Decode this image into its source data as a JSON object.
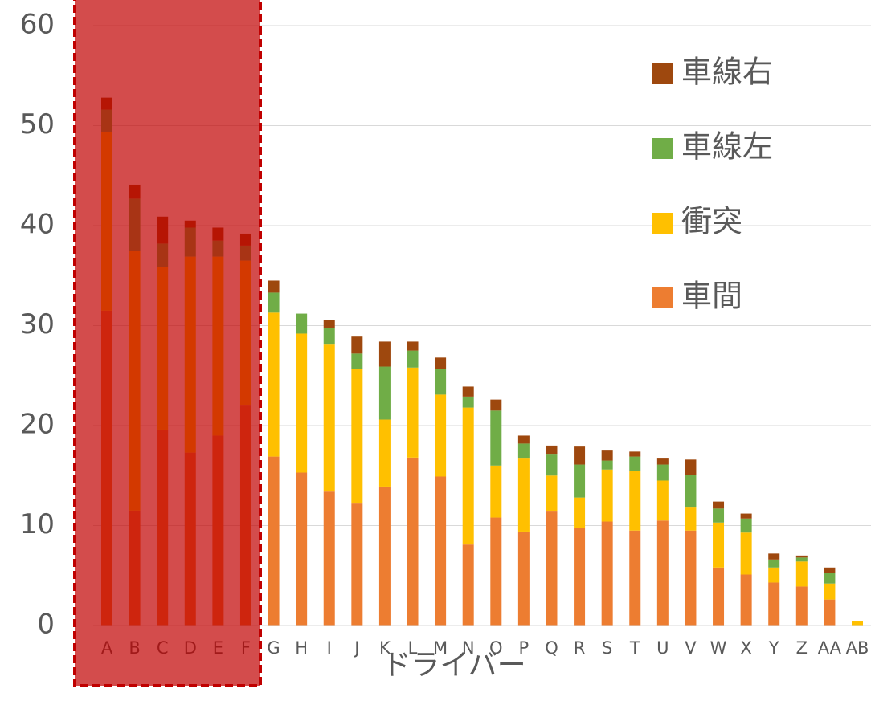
{
  "chart_data": {
    "type": "stacked_bar",
    "x_label": "ドライバー",
    "categories": [
      "A",
      "B",
      "C",
      "D",
      "E",
      "F",
      "G",
      "H",
      "I",
      "J",
      "K",
      "L",
      "M",
      "N",
      "O",
      "P",
      "Q",
      "R",
      "S",
      "T",
      "U",
      "V",
      "W",
      "X",
      "Y",
      "Z",
      "AA",
      "AB"
    ],
    "series": [
      {
        "name": "車間",
        "color": "#ed7d31",
        "values": [
          31.5,
          11.5,
          19.6,
          17.3,
          19.0,
          22.0,
          16.9,
          15.3,
          13.4,
          12.2,
          13.9,
          16.8,
          14.9,
          8.1,
          10.8,
          9.4,
          11.4,
          9.8,
          10.4,
          9.5,
          10.5,
          9.5,
          5.8,
          5.1,
          4.3,
          3.9,
          2.6,
          0
        ]
      },
      {
        "name": "衝突",
        "color": "#ffc000",
        "values": [
          17.9,
          26.0,
          16.3,
          19.6,
          17.9,
          14.5,
          14.4,
          13.9,
          14.7,
          13.5,
          6.7,
          9.0,
          8.2,
          13.7,
          5.2,
          7.3,
          3.6,
          3.0,
          5.2,
          6.0,
          4.0,
          2.3,
          4.5,
          4.2,
          1.5,
          2.5,
          1.6,
          0.4
        ]
      },
      {
        "name": "車線左",
        "color": "#70ad47",
        "values": [
          2.2,
          5.2,
          2.3,
          2.9,
          1.6,
          1.5,
          2.0,
          2.0,
          1.7,
          1.5,
          5.3,
          1.7,
          2.6,
          1.1,
          5.5,
          1.5,
          2.1,
          3.3,
          0.9,
          1.4,
          1.6,
          3.3,
          1.4,
          1.4,
          0.8,
          0.4,
          1.1,
          0
        ]
      },
      {
        "name": "車線右",
        "color": "#9e480e",
        "values": [
          1.2,
          1.4,
          2.7,
          0.7,
          1.3,
          1.2,
          1.2,
          0,
          0.8,
          1.7,
          2.5,
          0.9,
          1.1,
          1.0,
          1.1,
          0.8,
          0.9,
          1.8,
          1.0,
          0.5,
          0.6,
          1.5,
          0.7,
          0.5,
          0.6,
          0.2,
          0.5,
          0
        ]
      }
    ],
    "ylim": [
      0,
      60
    ],
    "yticks": [
      0,
      10,
      20,
      30,
      40,
      50,
      60
    ],
    "grid": true,
    "legend": "upper right"
  }
}
